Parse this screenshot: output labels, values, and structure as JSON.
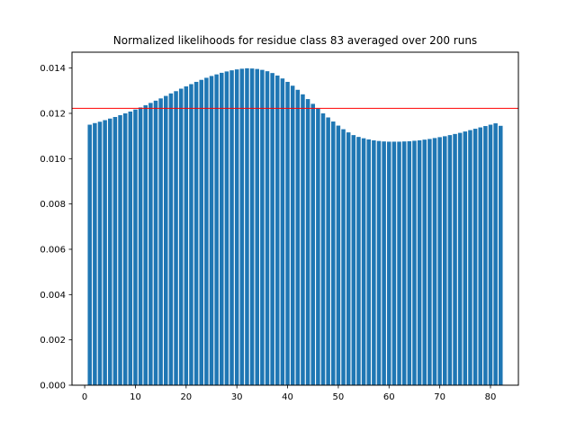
{
  "chart_data": {
    "type": "bar",
    "title": "Normalized likelihoods for residue class 83 averaged over 200 runs",
    "xlabel": "",
    "ylabel": "",
    "xlim": [
      -2.5,
      85.5
    ],
    "ylim": [
      0,
      0.0147
    ],
    "x_ticks": [
      0,
      10,
      20,
      30,
      40,
      50,
      60,
      70,
      80
    ],
    "y_ticks": [
      0.0,
      0.002,
      0.004,
      0.006,
      0.008,
      0.01,
      0.012,
      0.014
    ],
    "y_tick_labels": [
      "0.000",
      "0.002",
      "0.004",
      "0.006",
      "0.008",
      "0.010",
      "0.012",
      "0.014"
    ],
    "x": [
      1,
      2,
      3,
      4,
      5,
      6,
      7,
      8,
      9,
      10,
      11,
      12,
      13,
      14,
      15,
      16,
      17,
      18,
      19,
      20,
      21,
      22,
      23,
      24,
      25,
      26,
      27,
      28,
      29,
      30,
      31,
      32,
      33,
      34,
      35,
      36,
      37,
      38,
      39,
      40,
      41,
      42,
      43,
      44,
      45,
      46,
      47,
      48,
      49,
      50,
      51,
      52,
      53,
      54,
      55,
      56,
      57,
      58,
      59,
      60,
      61,
      62,
      63,
      64,
      65,
      66,
      67,
      68,
      69,
      70,
      71,
      72,
      73,
      74,
      75,
      76,
      77,
      78,
      79,
      80,
      81,
      82
    ],
    "values": [
      0.0115,
      0.01157,
      0.01163,
      0.0117,
      0.01177,
      0.01184,
      0.01192,
      0.012,
      0.01208,
      0.01217,
      0.01226,
      0.01236,
      0.01246,
      0.01256,
      0.01266,
      0.01277,
      0.01288,
      0.01298,
      0.01309,
      0.01319,
      0.01329,
      0.01339,
      0.01348,
      0.01357,
      0.01365,
      0.01372,
      0.01379,
      0.01385,
      0.0139,
      0.01394,
      0.01397,
      0.01399,
      0.01398,
      0.01396,
      0.01392,
      0.01386,
      0.01378,
      0.01367,
      0.01354,
      0.01339,
      0.01322,
      0.01304,
      0.01284,
      0.01263,
      0.01242,
      0.01221,
      0.012,
      0.01182,
      0.01164,
      0.01146,
      0.0113,
      0.01116,
      0.01104,
      0.01096,
      0.0109,
      0.01085,
      0.01081,
      0.01078,
      0.01076,
      0.01075,
      0.01075,
      0.01075,
      0.01076,
      0.01077,
      0.01079,
      0.01081,
      0.01084,
      0.01087,
      0.01091,
      0.01095,
      0.01099,
      0.01104,
      0.01109,
      0.01114,
      0.0112,
      0.01126,
      0.01132,
      0.01138,
      0.01144,
      0.0115,
      0.01156,
      0.01145
    ],
    "bar_color": "#1f77b4",
    "reference_line": {
      "y": 0.01222,
      "color": "#ff0000"
    },
    "grid": false,
    "legend": "none"
  }
}
